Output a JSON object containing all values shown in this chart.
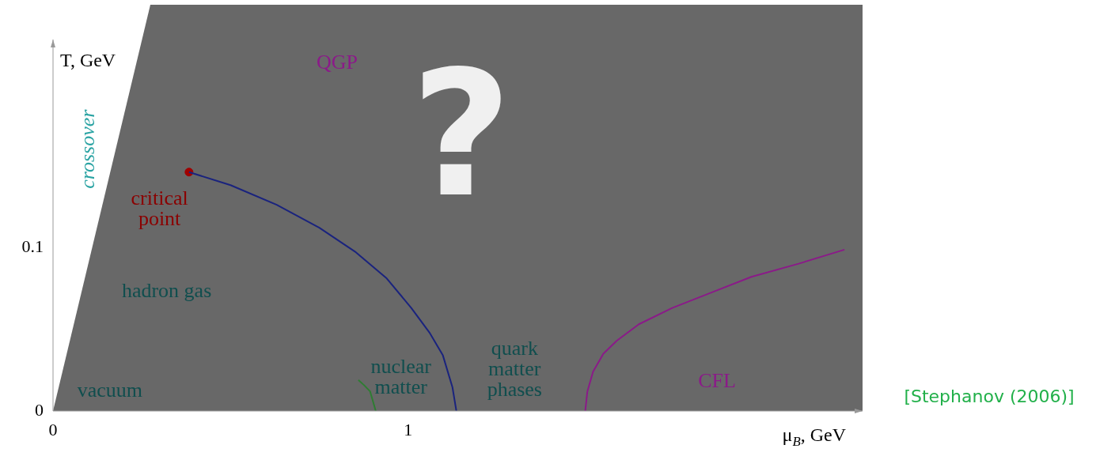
{
  "chart_data": {
    "type": "line",
    "xlabel": "μ$_{B}$, GeV",
    "ylabel": "T, GeV",
    "xlim": [
      0,
      2.28
    ],
    "ylim": [
      0,
      0.227
    ],
    "xticks": [
      0,
      1
    ],
    "yticks": [
      0,
      0.1
    ],
    "grid": false,
    "legend": false,
    "marker": "none",
    "line_style": "solid",
    "series": [
      {
        "color": "#1a237e",
        "x": [
          0.383,
          0.5,
          0.63,
          0.75,
          0.853,
          0.94,
          1.009,
          1.06,
          1.098,
          1.125,
          1.136
        ],
        "values": [
          0.146,
          0.138,
          0.126,
          0.112,
          0.097,
          0.081,
          0.063,
          0.048,
          0.034,
          0.0145,
          0
        ]
      },
      {
        "color": "#8b1a89",
        "x": [
          1.499,
          1.505,
          1.521,
          1.55,
          1.588,
          1.65,
          1.744,
          1.85,
          1.967,
          2.1,
          2.229
        ],
        "values": [
          0,
          0.012,
          0.024,
          0.035,
          0.043,
          0.053,
          0.063,
          0.072,
          0.082,
          0.09,
          0.0986
        ]
      },
      {
        "color": "#2e7d32",
        "x": [
          0.86,
          0.875,
          0.893,
          0.909
        ],
        "values": [
          0.019,
          0.016,
          0.012,
          0
        ]
      },
      {
        "type": "scatter",
        "color": "#a00000",
        "marker": "circle",
        "x": [
          0.383
        ],
        "values": [
          0.146
        ]
      }
    ],
    "annotations": [
      "QGP",
      "?",
      "crossover",
      "critical point",
      "hadron gas",
      "vacuum",
      "nuclear matter",
      "quark matter phases",
      "CFL",
      "[Stephanov (2006)]"
    ]
  }
}
